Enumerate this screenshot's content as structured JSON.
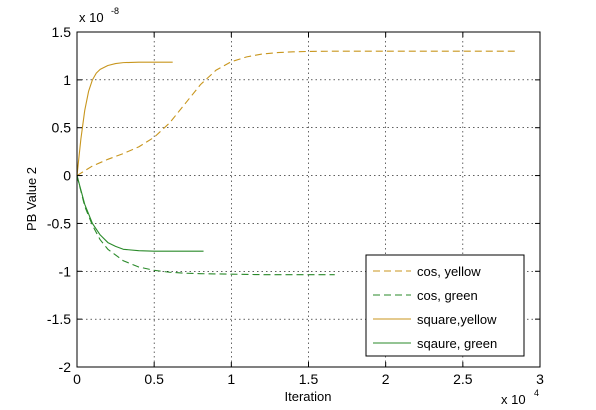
{
  "chart_data": {
    "type": "line",
    "title": "",
    "xlabel": "Iteration",
    "ylabel": "PB Value 2",
    "x_multiplier": {
      "base": "x 10",
      "exponent": "4"
    },
    "y_multiplier": {
      "base": "x 10",
      "exponent": "-8"
    },
    "xlim": [
      0,
      3
    ],
    "ylim": [
      -2,
      1.5
    ],
    "x_ticks": [
      "0",
      "0.5",
      "1",
      "1.5",
      "2",
      "2.5",
      "3"
    ],
    "y_ticks": [
      "-2",
      "-1.5",
      "-1",
      "-0.5",
      "0",
      "0.5",
      "1",
      "1.5"
    ],
    "grid": true,
    "legend_position": "bottom-right",
    "colors": {
      "yellow": "#c8961e",
      "green": "#2a8a2a"
    },
    "series": [
      {
        "name": "cos, yellow",
        "color": "#c8961e",
        "style": "dashed",
        "x": [
          0,
          0.1,
          0.2,
          0.3,
          0.4,
          0.5,
          0.6,
          0.7,
          0.8,
          0.9,
          1.0,
          1.1,
          1.2,
          1.3,
          1.4,
          1.5,
          1.7,
          2.0,
          2.3,
          2.6,
          2.85
        ],
        "values": [
          0,
          0.1,
          0.17,
          0.23,
          0.3,
          0.4,
          0.55,
          0.75,
          0.95,
          1.1,
          1.19,
          1.24,
          1.27,
          1.285,
          1.293,
          1.297,
          1.3,
          1.3,
          1.3,
          1.3,
          1.3
        ]
      },
      {
        "name": "cos, green",
        "color": "#2a8a2a",
        "style": "dashed",
        "x": [
          0,
          0.05,
          0.1,
          0.15,
          0.2,
          0.3,
          0.4,
          0.5,
          0.6,
          0.7,
          0.8,
          1.0,
          1.2,
          1.4,
          1.67
        ],
        "values": [
          0,
          -0.32,
          -0.52,
          -0.67,
          -0.77,
          -0.89,
          -0.955,
          -0.99,
          -1.01,
          -1.02,
          -1.025,
          -1.03,
          -1.035,
          -1.035,
          -1.035
        ]
      },
      {
        "name": "square,yellow",
        "color": "#c8961e",
        "style": "solid",
        "x": [
          0,
          0.025,
          0.05,
          0.075,
          0.1,
          0.125,
          0.15,
          0.2,
          0.25,
          0.3,
          0.4,
          0.5,
          0.62
        ],
        "values": [
          0,
          0.38,
          0.68,
          0.88,
          1.0,
          1.07,
          1.11,
          1.15,
          1.17,
          1.18,
          1.185,
          1.185,
          1.185
        ]
      },
      {
        "name": "sqaure, green",
        "color": "#2a8a2a",
        "style": "solid",
        "x": [
          0,
          0.05,
          0.1,
          0.15,
          0.2,
          0.25,
          0.3,
          0.4,
          0.5,
          0.6,
          0.7,
          0.82
        ],
        "values": [
          0,
          -0.3,
          -0.5,
          -0.62,
          -0.7,
          -0.74,
          -0.77,
          -0.785,
          -0.79,
          -0.79,
          -0.79,
          -0.79
        ]
      }
    ]
  }
}
